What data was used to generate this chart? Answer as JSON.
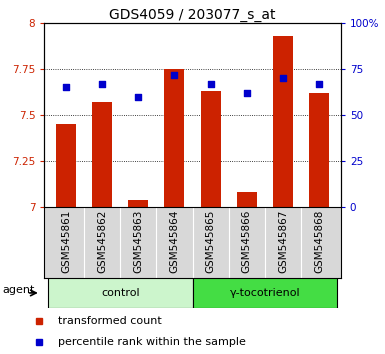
{
  "title": "GDS4059 / 203077_s_at",
  "samples": [
    "GSM545861",
    "GSM545862",
    "GSM545863",
    "GSM545864",
    "GSM545865",
    "GSM545866",
    "GSM545867",
    "GSM545868"
  ],
  "red_values": [
    7.45,
    7.57,
    7.04,
    7.75,
    7.63,
    7.08,
    7.93,
    7.62
  ],
  "blue_values": [
    65,
    67,
    60,
    72,
    67,
    62,
    70,
    67
  ],
  "ylim_left": [
    7.0,
    8.0
  ],
  "ylim_right": [
    0,
    100
  ],
  "yticks_left": [
    7.0,
    7.25,
    7.5,
    7.75,
    8.0
  ],
  "yticks_right": [
    0,
    25,
    50,
    75,
    100
  ],
  "ytick_labels_right": [
    "0",
    "25",
    "50",
    "75",
    "100%"
  ],
  "groups": [
    {
      "label": "control",
      "indices": [
        0,
        1,
        2,
        3
      ],
      "color": "#ccf5cc"
    },
    {
      "label": "γ-tocotrienol",
      "indices": [
        4,
        5,
        6,
        7
      ],
      "color": "#44dd44"
    }
  ],
  "bar_color": "#cc2200",
  "dot_color": "#0000cc",
  "bar_width": 0.55,
  "title_fontsize": 10,
  "tick_fontsize": 7.5,
  "label_fontsize": 8,
  "legend_fontsize": 8,
  "agent_label": "agent",
  "left_axis_color": "#cc2200",
  "right_axis_color": "#0000cc",
  "xtick_bg_color": "#d8d8d8",
  "group_border_color": "#000000"
}
